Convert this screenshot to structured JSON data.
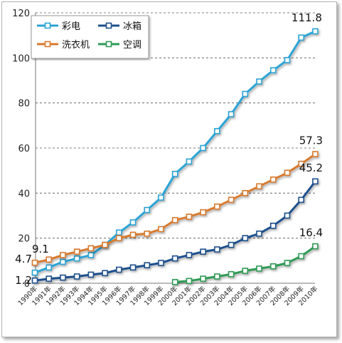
{
  "chart_data": {
    "type": "line",
    "categories": [
      "1990年",
      "1991年",
      "1992年",
      "1993年",
      "1994年",
      "1995年",
      "1996年",
      "1997年",
      "1998年",
      "1999年",
      "2000年",
      "2001年",
      "2002年",
      "2003年",
      "2004年",
      "2005年",
      "2006年",
      "2007年",
      "2008年",
      "2009年",
      "2010年"
    ],
    "ylim": [
      0,
      120
    ],
    "yticks": [
      "0",
      "20",
      "40",
      "60",
      "80",
      "100",
      "120"
    ],
    "grid": true,
    "legend_position": "top-left",
    "series": [
      {
        "name": "彩电",
        "color": "#2aa3d4",
        "values": [
          4.7,
          7.0,
          9.5,
          11.0,
          12.5,
          17.0,
          22.5,
          27.0,
          32.5,
          38.0,
          48.5,
          54.0,
          60.0,
          67.5,
          75.0,
          84.0,
          89.5,
          94.5,
          99.0,
          109.0,
          111.8
        ]
      },
      {
        "name": "冰箱",
        "color": "#1d4f8c",
        "values": [
          1.2,
          2.0,
          2.5,
          3.0,
          3.8,
          4.5,
          6.0,
          7.0,
          8.0,
          9.0,
          11.0,
          12.5,
          14.0,
          15.0,
          17.0,
          20.0,
          22.0,
          25.5,
          30.0,
          37.0,
          45.2
        ]
      },
      {
        "name": "洗衣机",
        "color": "#d77a2e",
        "values": [
          9.1,
          10.5,
          12.5,
          14.0,
          15.5,
          17.0,
          20.0,
          21.5,
          22.0,
          24.0,
          28.0,
          29.5,
          31.5,
          34.0,
          37.0,
          40.0,
          43.0,
          46.0,
          49.0,
          53.0,
          57.3
        ]
      },
      {
        "name": "空调",
        "color": "#2e9a55",
        "values": [
          null,
          null,
          null,
          null,
          null,
          null,
          null,
          null,
          null,
          null,
          0.5,
          1.0,
          2.0,
          3.0,
          4.0,
          5.5,
          6.5,
          7.5,
          9.0,
          12.0,
          16.4
        ]
      }
    ],
    "data_labels": [
      {
        "series": 0,
        "index": 0,
        "text": "4.7",
        "anchor": "end",
        "dx": -4,
        "dy": -14
      },
      {
        "series": 1,
        "index": 0,
        "text": "1.2",
        "anchor": "end",
        "dx": -4,
        "dy": 5
      },
      {
        "series": 2,
        "index": 0,
        "text": "9.1",
        "anchor": "start",
        "dx": -4,
        "dy": -14
      },
      {
        "series": 0,
        "index": 20,
        "text": "111.8",
        "anchor": "middle",
        "dx": -12,
        "dy": -14
      },
      {
        "series": 2,
        "index": 20,
        "text": "57.3",
        "anchor": "middle",
        "dx": -6,
        "dy": -14
      },
      {
        "series": 1,
        "index": 20,
        "text": "45.2",
        "anchor": "middle",
        "dx": -6,
        "dy": -14
      },
      {
        "series": 3,
        "index": 20,
        "text": "16.4",
        "anchor": "middle",
        "dx": -6,
        "dy": -14
      }
    ]
  }
}
